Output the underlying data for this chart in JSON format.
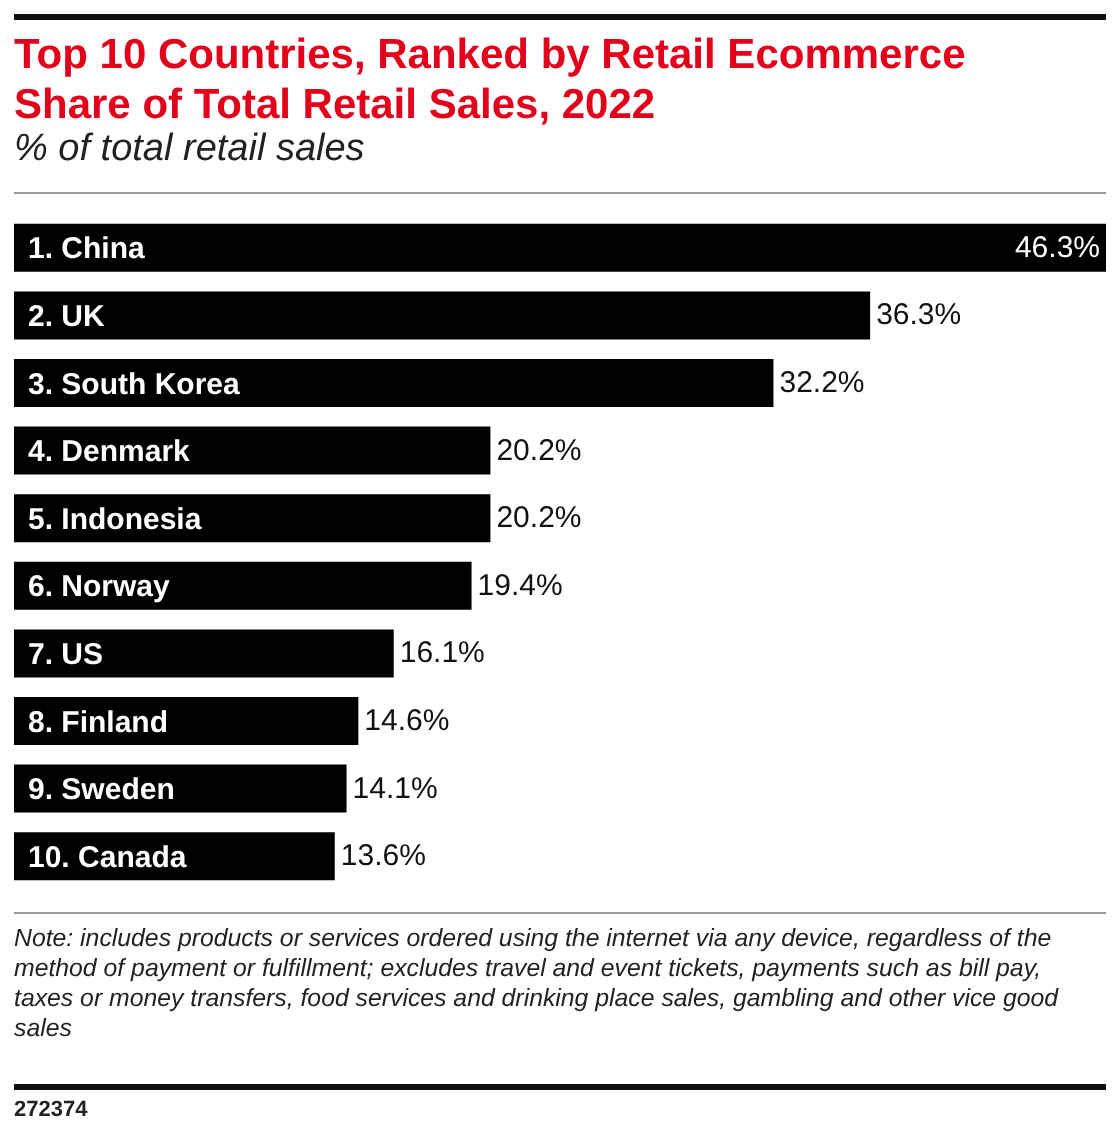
{
  "chart_data": {
    "type": "bar",
    "orientation": "horizontal",
    "title": "Top 10 Countries, Ranked by Retail Ecommerce Share of Total Retail Sales, 2022",
    "subtitle": "% of total retail sales",
    "categories": [
      "1. China",
      "2. UK",
      "3. South Korea",
      "4. Denmark",
      "5. Indonesia",
      "6. Norway",
      "7. US",
      "8. Finland",
      "9. Sweden",
      "10. Canada"
    ],
    "values": [
      46.3,
      36.3,
      32.2,
      20.2,
      20.2,
      19.4,
      16.1,
      14.6,
      14.1,
      13.6
    ],
    "value_labels": [
      "46.3%",
      "36.3%",
      "32.2%",
      "20.2%",
      "20.2%",
      "19.4%",
      "16.1%",
      "14.6%",
      "14.1%",
      "13.6%"
    ],
    "color": "#000000",
    "annotations": [
      "Note: includes products or services ordered using the internet via any device, regardless of the method of payment or fulfillment; excludes travel and event tickets, payments such as bill pay, taxes or money transfers, food services and drinking place sales, gambling and other vice good sales",
      "272374"
    ]
  }
}
